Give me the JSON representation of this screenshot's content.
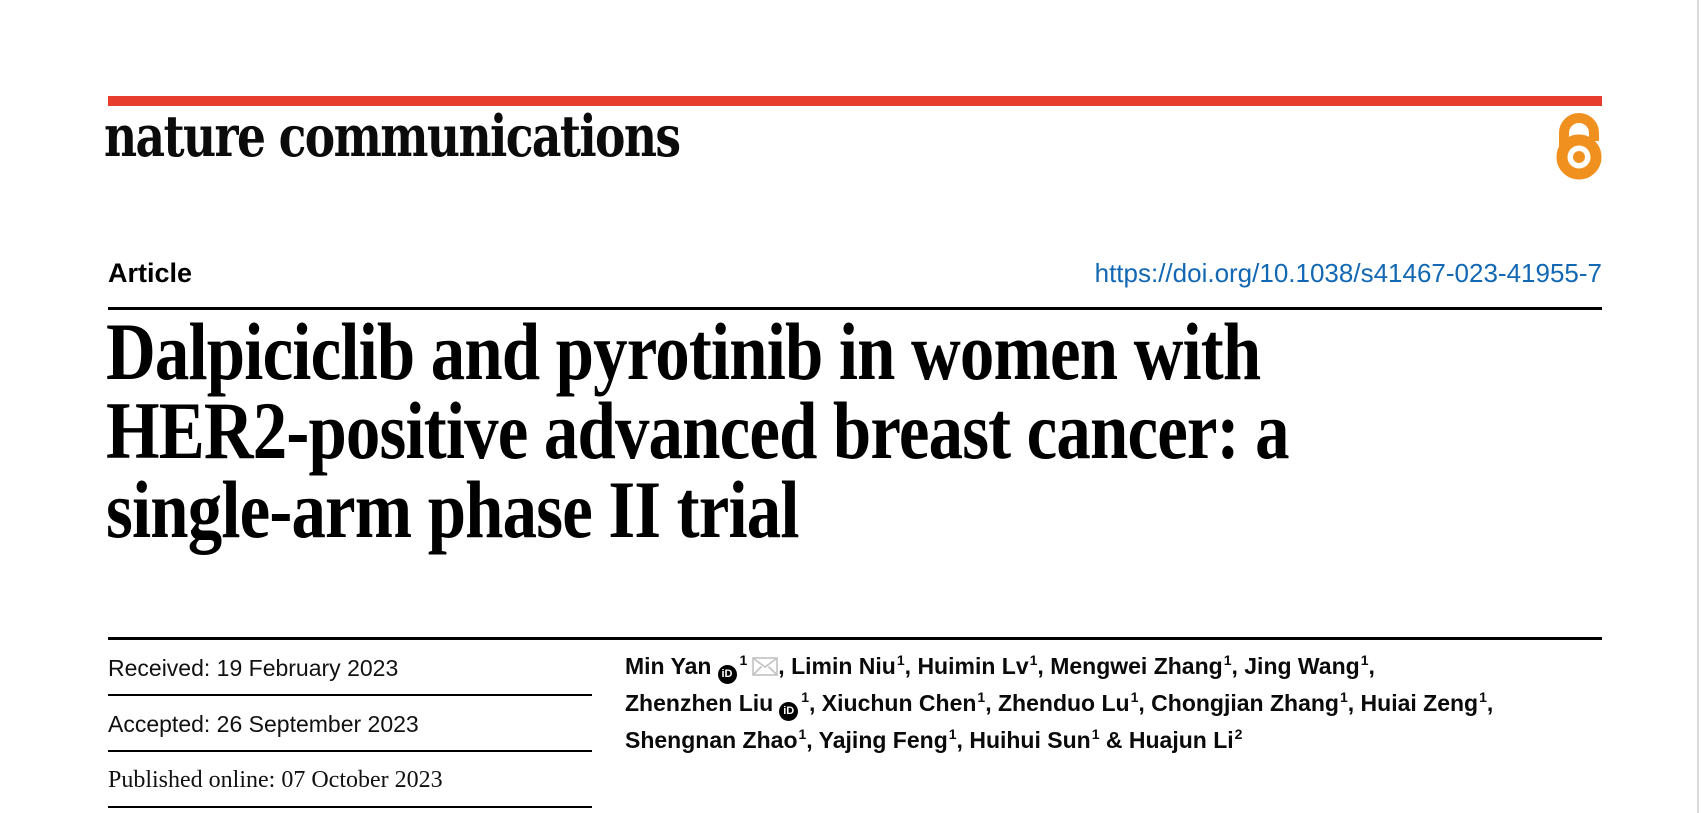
{
  "page": {
    "background": "#ffffff",
    "edge_line_color": "#d9d9d9"
  },
  "masthead": {
    "journal_wordmark": "nature communications",
    "accent_bar_color": "#e63d2e",
    "open_access_icon": "open-access-icon",
    "open_access_color": "#f0911f"
  },
  "article_header": {
    "type_label": "Article",
    "doi_link": "https://doi.org/10.1038/s41467-023-41955-7",
    "doi_color": "#1268b3",
    "title_lines": [
      "Dalpiciclib and pyrotinib in women with",
      "HER2-positive advanced breast cancer: a",
      "single-arm phase II trial"
    ]
  },
  "history": {
    "received": "Received: 19 February 2023",
    "accepted": "Accepted: 26 September 2023",
    "published": "Published online: 07 October 2023"
  },
  "authors": {
    "icons": {
      "orcid": "orcid-icon",
      "email": "envelope-icon"
    },
    "orcid_badge_text": "iD",
    "lines": [
      [
        {
          "name": "Min Yan",
          "orcid": true,
          "sup": "1",
          "email": true,
          "trail": ", "
        },
        {
          "name": "Limin Niu",
          "sup": "1",
          "trail": ", "
        },
        {
          "name": "Huimin Lv",
          "sup": "1",
          "trail": ", "
        },
        {
          "name": "Mengwei Zhang",
          "sup": "1",
          "trail": ", "
        },
        {
          "name": "Jing Wang",
          "sup": "1",
          "trail": ","
        }
      ],
      [
        {
          "name": "Zhenzhen Liu",
          "orcid": true,
          "sup": "1",
          "trail": ", "
        },
        {
          "name": "Xiuchun Chen",
          "sup": "1",
          "trail": ", "
        },
        {
          "name": "Zhenduo Lu",
          "sup": "1",
          "trail": ", "
        },
        {
          "name": "Chongjian Zhang",
          "sup": "1",
          "trail": ", "
        },
        {
          "name": "Huiai Zeng",
          "sup": "1",
          "trail": ","
        }
      ],
      [
        {
          "name": "Shengnan Zhao",
          "sup": "1",
          "trail": ", "
        },
        {
          "name": "Yajing Feng",
          "sup": "1",
          "trail": ", "
        },
        {
          "name": "Huihui Sun",
          "sup": "1",
          "trail": " & "
        },
        {
          "name": "Huajun Li",
          "sup": "2",
          "trail": ""
        }
      ]
    ]
  }
}
